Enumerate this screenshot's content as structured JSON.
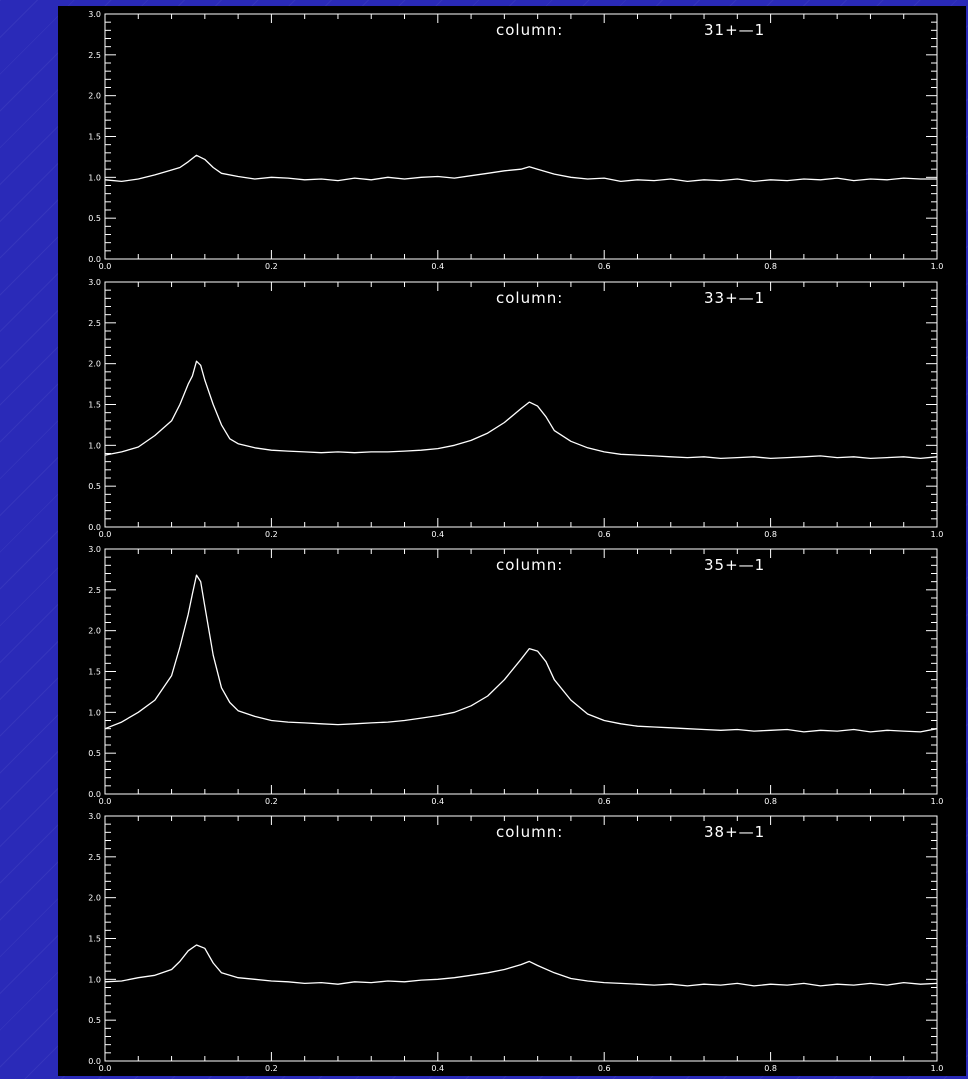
{
  "background_color": "#2a2ab8",
  "plot_bg_color": "#000000",
  "line_color": "#ffffff",
  "chart_data": [
    {
      "type": "line",
      "annotation_label": "column:",
      "annotation_value": "31+—1",
      "xlim": [
        0.0,
        1.0
      ],
      "ylim": [
        0.0,
        3.0
      ],
      "x_ticks": [
        "0.0",
        "0.2",
        "0.4",
        "0.6",
        "0.8",
        "1.0"
      ],
      "y_ticks": [
        "0.0",
        "0.5",
        "1.0",
        "1.5",
        "2.0",
        "2.5",
        "3.0"
      ],
      "x": [
        0.0,
        0.02,
        0.04,
        0.06,
        0.08,
        0.09,
        0.1,
        0.11,
        0.12,
        0.13,
        0.14,
        0.16,
        0.18,
        0.2,
        0.22,
        0.24,
        0.26,
        0.28,
        0.3,
        0.32,
        0.34,
        0.36,
        0.38,
        0.4,
        0.42,
        0.44,
        0.46,
        0.48,
        0.5,
        0.51,
        0.52,
        0.54,
        0.56,
        0.58,
        0.6,
        0.62,
        0.64,
        0.66,
        0.68,
        0.7,
        0.72,
        0.74,
        0.76,
        0.78,
        0.8,
        0.82,
        0.84,
        0.86,
        0.88,
        0.9,
        0.92,
        0.94,
        0.96,
        0.98,
        1.0
      ],
      "y": [
        0.97,
        0.95,
        0.98,
        1.03,
        1.09,
        1.12,
        1.19,
        1.27,
        1.22,
        1.12,
        1.05,
        1.01,
        0.98,
        1.0,
        0.99,
        0.97,
        0.98,
        0.96,
        0.99,
        0.97,
        1.0,
        0.98,
        1.0,
        1.01,
        0.99,
        1.02,
        1.05,
        1.08,
        1.1,
        1.13,
        1.1,
        1.04,
        1.0,
        0.98,
        0.99,
        0.95,
        0.97,
        0.96,
        0.98,
        0.95,
        0.97,
        0.96,
        0.98,
        0.95,
        0.97,
        0.96,
        0.98,
        0.97,
        0.99,
        0.96,
        0.98,
        0.97,
        0.99,
        0.98,
        0.98
      ]
    },
    {
      "type": "line",
      "annotation_label": "column:",
      "annotation_value": "33+—1",
      "xlim": [
        0.0,
        1.0
      ],
      "ylim": [
        0.0,
        3.0
      ],
      "x_ticks": [
        "0.0",
        "0.2",
        "0.4",
        "0.6",
        "0.8",
        "1.0"
      ],
      "y_ticks": [
        "0.0",
        "0.5",
        "1.0",
        "1.5",
        "2.0",
        "2.5",
        "3.0"
      ],
      "x": [
        0.0,
        0.02,
        0.04,
        0.06,
        0.08,
        0.09,
        0.1,
        0.105,
        0.11,
        0.115,
        0.12,
        0.13,
        0.14,
        0.15,
        0.16,
        0.18,
        0.2,
        0.22,
        0.24,
        0.26,
        0.28,
        0.3,
        0.32,
        0.34,
        0.36,
        0.38,
        0.4,
        0.42,
        0.44,
        0.46,
        0.48,
        0.5,
        0.51,
        0.52,
        0.53,
        0.54,
        0.56,
        0.58,
        0.6,
        0.62,
        0.64,
        0.66,
        0.68,
        0.7,
        0.72,
        0.74,
        0.76,
        0.78,
        0.8,
        0.82,
        0.84,
        0.86,
        0.88,
        0.9,
        0.92,
        0.94,
        0.96,
        0.98,
        1.0
      ],
      "y": [
        0.88,
        0.92,
        0.98,
        1.12,
        1.3,
        1.5,
        1.75,
        1.85,
        2.03,
        1.98,
        1.8,
        1.5,
        1.25,
        1.08,
        1.02,
        0.97,
        0.94,
        0.93,
        0.92,
        0.91,
        0.92,
        0.91,
        0.92,
        0.92,
        0.93,
        0.94,
        0.96,
        1.0,
        1.06,
        1.15,
        1.28,
        1.45,
        1.53,
        1.48,
        1.35,
        1.18,
        1.05,
        0.97,
        0.92,
        0.89,
        0.88,
        0.87,
        0.86,
        0.85,
        0.86,
        0.84,
        0.85,
        0.86,
        0.84,
        0.85,
        0.86,
        0.87,
        0.85,
        0.86,
        0.84,
        0.85,
        0.86,
        0.84,
        0.86
      ]
    },
    {
      "type": "line",
      "annotation_label": "column:",
      "annotation_value": "35+—1",
      "xlim": [
        0.0,
        1.0
      ],
      "ylim": [
        0.0,
        3.0
      ],
      "x_ticks": [
        "0.0",
        "0.2",
        "0.4",
        "0.6",
        "0.8",
        "1.0"
      ],
      "y_ticks": [
        "0.0",
        "0.5",
        "1.0",
        "1.5",
        "2.0",
        "2.5",
        "3.0"
      ],
      "x": [
        0.0,
        0.02,
        0.04,
        0.06,
        0.08,
        0.09,
        0.1,
        0.105,
        0.11,
        0.115,
        0.12,
        0.13,
        0.14,
        0.15,
        0.16,
        0.18,
        0.2,
        0.22,
        0.24,
        0.26,
        0.28,
        0.3,
        0.32,
        0.34,
        0.36,
        0.38,
        0.4,
        0.42,
        0.44,
        0.46,
        0.48,
        0.5,
        0.51,
        0.52,
        0.53,
        0.54,
        0.56,
        0.58,
        0.6,
        0.62,
        0.64,
        0.66,
        0.68,
        0.7,
        0.72,
        0.74,
        0.76,
        0.78,
        0.8,
        0.82,
        0.84,
        0.86,
        0.88,
        0.9,
        0.92,
        0.94,
        0.96,
        0.98,
        1.0
      ],
      "y": [
        0.8,
        0.88,
        1.0,
        1.15,
        1.45,
        1.8,
        2.2,
        2.45,
        2.68,
        2.6,
        2.3,
        1.7,
        1.3,
        1.12,
        1.02,
        0.95,
        0.9,
        0.88,
        0.87,
        0.86,
        0.85,
        0.86,
        0.87,
        0.88,
        0.9,
        0.93,
        0.96,
        1.0,
        1.08,
        1.2,
        1.4,
        1.65,
        1.78,
        1.75,
        1.62,
        1.4,
        1.15,
        0.98,
        0.9,
        0.86,
        0.83,
        0.82,
        0.81,
        0.8,
        0.79,
        0.78,
        0.79,
        0.77,
        0.78,
        0.79,
        0.76,
        0.78,
        0.77,
        0.79,
        0.76,
        0.78,
        0.77,
        0.76,
        0.8
      ]
    },
    {
      "type": "line",
      "annotation_label": "column:",
      "annotation_value": "38+—1",
      "xlim": [
        0.0,
        1.0
      ],
      "ylim": [
        0.0,
        3.0
      ],
      "x_ticks": [
        "0.0",
        "0.2",
        "0.4",
        "0.6",
        "0.8",
        "1.0"
      ],
      "y_ticks": [
        "0.0",
        "0.5",
        "1.0",
        "1.5",
        "2.0",
        "2.5",
        "3.0"
      ],
      "x": [
        0.0,
        0.02,
        0.04,
        0.06,
        0.08,
        0.09,
        0.1,
        0.11,
        0.12,
        0.13,
        0.14,
        0.16,
        0.18,
        0.2,
        0.22,
        0.24,
        0.26,
        0.28,
        0.3,
        0.32,
        0.34,
        0.36,
        0.38,
        0.4,
        0.42,
        0.44,
        0.46,
        0.48,
        0.5,
        0.51,
        0.52,
        0.54,
        0.56,
        0.58,
        0.6,
        0.62,
        0.64,
        0.66,
        0.68,
        0.7,
        0.72,
        0.74,
        0.76,
        0.78,
        0.8,
        0.82,
        0.84,
        0.86,
        0.88,
        0.9,
        0.92,
        0.94,
        0.96,
        0.98,
        1.0
      ],
      "y": [
        0.97,
        0.98,
        1.02,
        1.05,
        1.12,
        1.22,
        1.35,
        1.42,
        1.38,
        1.2,
        1.08,
        1.02,
        1.0,
        0.98,
        0.97,
        0.95,
        0.96,
        0.94,
        0.97,
        0.96,
        0.98,
        0.97,
        0.99,
        1.0,
        1.02,
        1.05,
        1.08,
        1.12,
        1.18,
        1.22,
        1.17,
        1.08,
        1.01,
        0.98,
        0.96,
        0.95,
        0.94,
        0.93,
        0.94,
        0.92,
        0.94,
        0.93,
        0.95,
        0.92,
        0.94,
        0.93,
        0.95,
        0.92,
        0.94,
        0.93,
        0.95,
        0.93,
        0.96,
        0.94,
        0.95
      ]
    }
  ]
}
